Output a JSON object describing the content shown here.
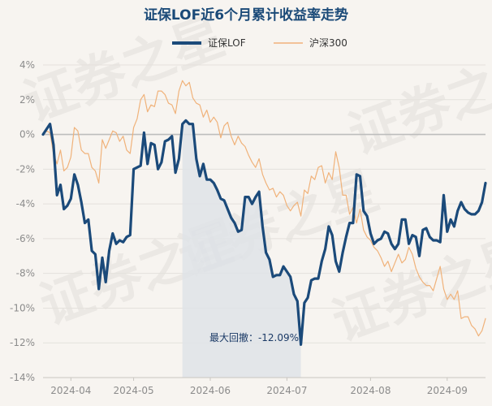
{
  "chart_data": {
    "type": "line",
    "title": "证保LOF近6个月累计收益率走势",
    "xlabel": "",
    "ylabel": "",
    "ylim": [
      -14,
      4
    ],
    "yticks": [
      4,
      2,
      0,
      -2,
      -4,
      -6,
      -8,
      -10,
      -12,
      -14
    ],
    "ytick_labels": [
      "4%",
      "2%",
      "0%",
      "-2%",
      "-4%",
      "-6%",
      "-8%",
      "-10%",
      "-12%",
      "-14%"
    ],
    "x_tick_labels": [
      "2024-04",
      "2024-05",
      "2024-06",
      "2024-07",
      "2024-08",
      "2024-09"
    ],
    "legend_position": "top-center",
    "grid": "horizontal",
    "colors": {
      "fund": "#1b4a7a",
      "index": "#f0b27a",
      "zero_line": "#bdbdbd",
      "drawdown_fill": "#dfe3e8"
    },
    "drawdown": {
      "label": "最大回撤：-12.09%",
      "start_index": 40,
      "end_index": 74
    },
    "watermark": "证券之星",
    "series": [
      {
        "name": "证保LOF",
        "values": [
          0,
          0.3,
          0.6,
          -0.6,
          -3.5,
          -2.9,
          -4.3,
          -4.1,
          -3.7,
          -2.3,
          -2.9,
          -3.9,
          -5.1,
          -4.9,
          -6.7,
          -6.9,
          -8.9,
          -7.1,
          -8.5,
          -6.7,
          -5.7,
          -6.3,
          -6.1,
          -6.2,
          -5.9,
          -5.8,
          -2.0,
          -1.9,
          -1.8,
          0.1,
          -1.7,
          -0.5,
          -0.6,
          -2.0,
          -1.6,
          -0.4,
          -0.3,
          -0.1,
          -2.2,
          -1.4,
          0.6,
          0.8,
          0.6,
          0.6,
          -1.4,
          -2.4,
          -1.7,
          -2.6,
          -2.6,
          -2.8,
          -3.2,
          -3.7,
          -3.8,
          -4.3,
          -4.8,
          -5.1,
          -5.6,
          -5.5,
          -3.6,
          -3.6,
          -4.0,
          -3.6,
          -3.3,
          -5.3,
          -6.8,
          -7.2,
          -8.2,
          -8.1,
          -8.1,
          -7.6,
          -7.9,
          -8.2,
          -9.2,
          -9.6,
          -12.1,
          -9.7,
          -9.4,
          -8.4,
          -8.3,
          -8.3,
          -7.3,
          -6.6,
          -5.3,
          -5.8,
          -7.3,
          -7.9,
          -6.8,
          -5.9,
          -5.1,
          -5.1,
          -2.3,
          -2.4,
          -4.4,
          -4.7,
          -5.7,
          -6.3,
          -6.1,
          -6.0,
          -5.6,
          -5.7,
          -6.3,
          -6.6,
          -6.3,
          -4.9,
          -4.9,
          -6.3,
          -5.8,
          -5.9,
          -7.0,
          -5.5,
          -5.4,
          -5.9,
          -6.1,
          -6.1,
          -6.2,
          -3.5,
          -5.6,
          -4.9,
          -5.3,
          -4.4,
          -3.9,
          -4.3,
          -4.5,
          -4.6,
          -4.6,
          -4.4,
          -3.9,
          -2.8
        ]
      },
      {
        "name": "沪深300",
        "values": [
          0,
          0.2,
          0.1,
          -1.1,
          -1.7,
          -0.9,
          -2.1,
          -1.9,
          -1.3,
          0.4,
          0.2,
          -0.9,
          -1.1,
          -1.1,
          -1.9,
          -2.1,
          -2.8,
          -0.3,
          -0.8,
          -0.3,
          0.2,
          0.1,
          -0.4,
          -0.1,
          -0.9,
          -1.1,
          0.4,
          0.9,
          2.0,
          2.3,
          1.3,
          1.7,
          1.6,
          2.5,
          2.5,
          2.3,
          1.8,
          1.7,
          1.2,
          2.5,
          3.1,
          2.8,
          3.0,
          2.1,
          1.8,
          1.7,
          1.0,
          1.4,
          0.7,
          1.0,
          0.7,
          -0.2,
          0.5,
          0.7,
          -0.1,
          -0.6,
          -0.1,
          -0.5,
          -0.7,
          -1.2,
          -1.6,
          -1.9,
          -1.4,
          -2.3,
          -2.8,
          -3.2,
          -3.1,
          -3.6,
          -3.3,
          -3.5,
          -4.1,
          -4.4,
          -4.1,
          -3.9,
          -4.7,
          -3.2,
          -3.4,
          -2.4,
          -2.6,
          -1.9,
          -1.8,
          -2.8,
          -2.2,
          -2.6,
          -1.0,
          -1.9,
          -3.5,
          -3.5,
          -4.6,
          -4.2,
          -5.1,
          -4.3,
          -5.5,
          -5.9,
          -6.1,
          -6.5,
          -6.7,
          -7.1,
          -7.6,
          -7.3,
          -7.9,
          -7.4,
          -6.9,
          -7.4,
          -7.2,
          -6.5,
          -6.9,
          -7.7,
          -8.2,
          -8.5,
          -8.7,
          -8.7,
          -9.0,
          -8.3,
          -7.6,
          -8.9,
          -9.5,
          -9.2,
          -9.5,
          -9.0,
          -10.6,
          -10.5,
          -10.5,
          -11.0,
          -11.2,
          -11.6,
          -11.3,
          -10.6
        ]
      }
    ]
  }
}
